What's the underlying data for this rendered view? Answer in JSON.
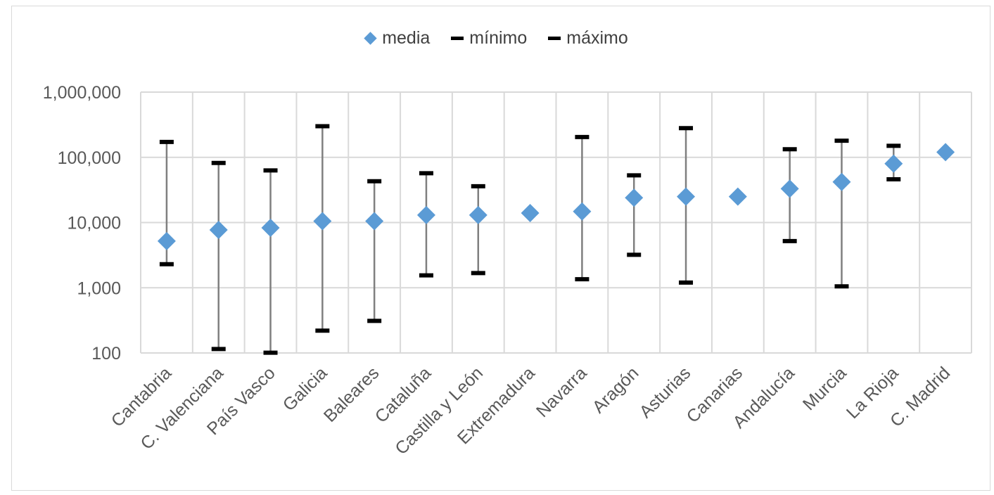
{
  "chart_data": {
    "type": "scatter",
    "y_scale": "log",
    "ylim": [
      100,
      1000000
    ],
    "yticks": [
      {
        "value": 100,
        "label": "100"
      },
      {
        "value": 1000,
        "label": "1,000"
      },
      {
        "value": 10000,
        "label": "10,000"
      },
      {
        "value": 100000,
        "label": "100,000"
      },
      {
        "value": 1000000,
        "label": "1,000,000"
      }
    ],
    "grid": true,
    "legend_position": "top",
    "legend": [
      {
        "name": "media",
        "marker": "diamond",
        "color": "#5b9bd5"
      },
      {
        "name": "mínimo",
        "marker": "dash",
        "color": "#000000"
      },
      {
        "name": "máximo",
        "marker": "dash",
        "color": "#000000"
      }
    ],
    "categories": [
      "Cantabria",
      "C. Valenciana",
      "País Vasco",
      "Galicia",
      "Baleares",
      "Cataluña",
      "Castilla y León",
      "Extremadura",
      "Navarra",
      "Aragón",
      "Asturias",
      "Canarias",
      "Andalucía",
      "Murcia",
      "La Rioja",
      "C. Madrid"
    ],
    "series": [
      {
        "name": "media",
        "values": [
          5200,
          7700,
          8300,
          10500,
          10500,
          13000,
          13000,
          14000,
          14800,
          24000,
          25000,
          25000,
          33000,
          42000,
          80000,
          120000
        ]
      },
      {
        "name": "mínimo",
        "values": [
          2300,
          115,
          101,
          220,
          310,
          1550,
          1680,
          null,
          1350,
          3200,
          1200,
          null,
          5200,
          1050,
          46000,
          null
        ]
      },
      {
        "name": "máximo",
        "values": [
          172000,
          82000,
          63000,
          300000,
          43000,
          57000,
          36000,
          null,
          205000,
          53000,
          280000,
          null,
          133000,
          180000,
          150000,
          null
        ]
      }
    ]
  }
}
